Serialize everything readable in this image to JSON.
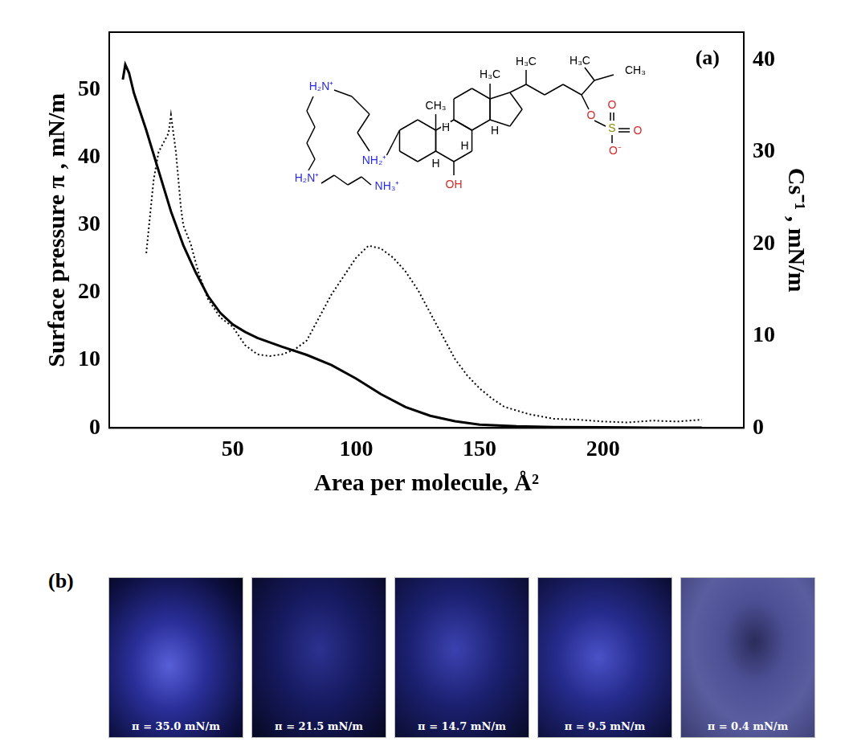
{
  "chart_data": {
    "type": "line",
    "annotations": [
      "(a)"
    ],
    "x_label": "Area per molecule, Å²",
    "y_label": "Surface pressure π , mN/m",
    "y2_label": "Cs⁻¹ , mN/m",
    "xlim": [
      0,
      257
    ],
    "xticks": [
      50,
      100,
      150,
      200
    ],
    "ylim": [
      0,
      58.5
    ],
    "yticks": [
      0,
      10,
      20,
      30,
      40,
      50
    ],
    "y2lim": [
      0,
      43
    ],
    "y2ticks": [
      0,
      10,
      20,
      30,
      40
    ],
    "grid": false,
    "series": [
      {
        "color": "#000000",
        "line_style": "solid",
        "x": [
          5.5,
          6.5,
          8,
          10,
          15,
          20,
          25,
          30,
          35,
          40,
          45,
          50,
          55,
          60,
          70,
          80,
          90,
          100,
          110,
          120,
          130,
          140,
          150,
          165,
          180,
          200,
          220,
          240
        ],
        "values": [
          51.5,
          53.7,
          52.5,
          49.5,
          44,
          38,
          32,
          27,
          23,
          19.5,
          17,
          15.3,
          14.2,
          13.3,
          12,
          10.8,
          9.3,
          7.3,
          5,
          3.1,
          1.8,
          1,
          0.5,
          0.25,
          0.15,
          0.1,
          0.05,
          0.05
        ]
      },
      {
        "color": "#000000",
        "line_style": "dotted",
        "axis": "y2",
        "x": [
          15,
          18,
          20,
          22,
          24,
          25,
          27,
          29,
          30,
          33,
          36,
          40,
          45,
          50,
          55,
          60,
          65,
          70,
          75,
          80,
          85,
          90,
          95,
          100,
          105,
          110,
          115,
          120,
          125,
          130,
          135,
          140,
          145,
          150,
          155,
          160,
          170,
          180,
          190,
          200,
          210,
          220,
          230,
          240
        ],
        "values": [
          19,
          27,
          30,
          31,
          32,
          34,
          30,
          24,
          22,
          20,
          17,
          14,
          12,
          11,
          9,
          8,
          7.8,
          8,
          8.5,
          9.5,
          12,
          14.5,
          16.5,
          18.5,
          19.8,
          19.5,
          18.5,
          17,
          15,
          12.5,
          10,
          7.5,
          5.7,
          4.3,
          3.2,
          2.3,
          1.5,
          1,
          0.9,
          0.7,
          0.6,
          0.8,
          0.7,
          0.9
        ]
      }
    ]
  },
  "inset": {
    "atoms": [
      {
        "text": "H₂N⁺",
        "color": "#2b2bd6"
      },
      {
        "text": "NH₂⁺",
        "color": "#2b2bd6"
      },
      {
        "text": "H₂N⁺",
        "color": "#2b2bd6"
      },
      {
        "text": "NH₃⁺",
        "color": "#2b2bd6"
      },
      {
        "text": "CH₃",
        "color": "#000000"
      },
      {
        "text": "H₃C",
        "color": "#000000"
      },
      {
        "text": "H",
        "color": "#000000"
      },
      {
        "text": "H",
        "color": "#000000"
      },
      {
        "text": "H",
        "color": "#000000"
      },
      {
        "text": "H",
        "color": "#000000"
      },
      {
        "text": "OH",
        "color": "#d62b2b"
      },
      {
        "text": "H₃C",
        "color": "#000000"
      },
      {
        "text": "H₃C",
        "color": "#000000"
      },
      {
        "text": "CH₃",
        "color": "#000000"
      },
      {
        "text": "O",
        "color": "#d62b2b"
      },
      {
        "text": "S",
        "color": "#8a8a00"
      },
      {
        "text": "O",
        "color": "#d62b2b"
      },
      {
        "text": "O",
        "color": "#d62b2b"
      },
      {
        "text": "O⁻",
        "color": "#d62b2b"
      }
    ]
  },
  "panel_b": {
    "label": "(b)",
    "images": [
      {
        "caption": "π = 35.0 mN/m"
      },
      {
        "caption": "π = 21.5 mN/m"
      },
      {
        "caption": "π = 14.7 mN/m"
      },
      {
        "caption": "π = 9.5 mN/m"
      },
      {
        "caption": "π = 0.4 mN/m"
      }
    ]
  }
}
